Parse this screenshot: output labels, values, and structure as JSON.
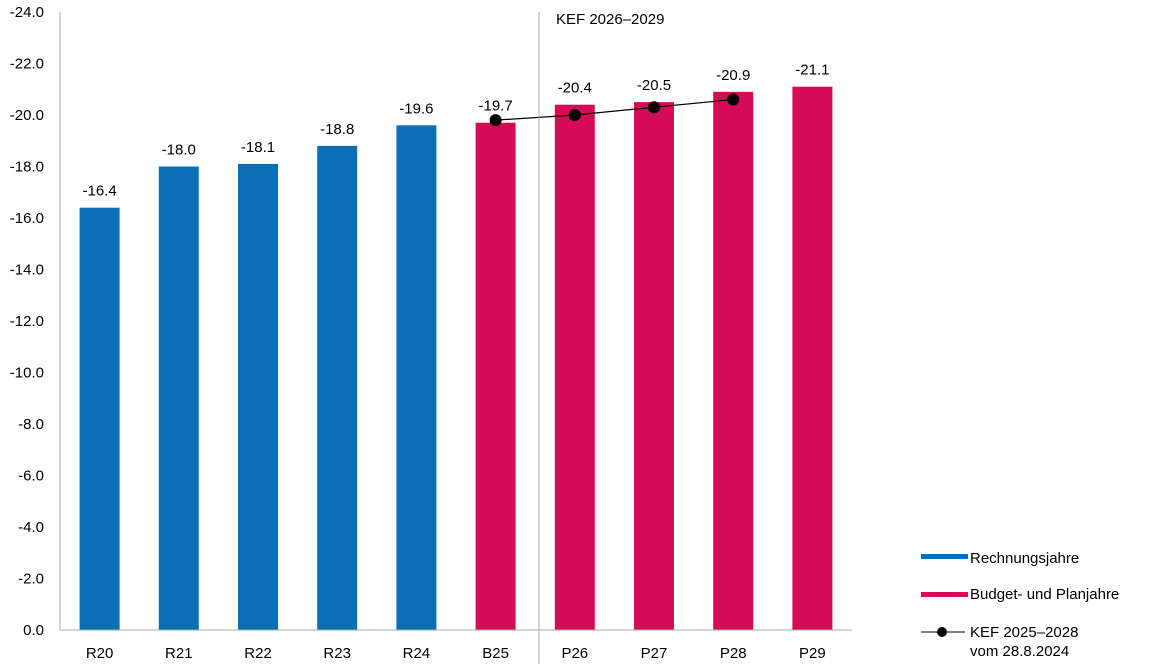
{
  "chart_data": {
    "type": "bar",
    "title": "",
    "xlabel": "",
    "ylabel": "",
    "ylim": [
      0,
      -24
    ],
    "y_axis_reversed": true,
    "yticks": [
      "0.0",
      "-2.0",
      "-4.0",
      "-6.0",
      "-8.0",
      "-10.0",
      "-12.0",
      "-14.0",
      "-16.0",
      "-18.0",
      "-20.0",
      "-22.0",
      "-24.0"
    ],
    "grid": false,
    "categories": [
      "R20",
      "R21",
      "R22",
      "R23",
      "R24",
      "B25",
      "P26",
      "P27",
      "P28",
      "P29"
    ],
    "series": [
      {
        "name": "Rechnungsjahre",
        "type": "bar",
        "color": "#0b6fb5",
        "values": [
          -16.4,
          -18.0,
          -18.1,
          -18.8,
          -19.6,
          null,
          null,
          null,
          null,
          null
        ]
      },
      {
        "name": "Budget- und Planjahre",
        "type": "bar",
        "color": "#d40b55",
        "values": [
          null,
          null,
          null,
          null,
          null,
          -19.7,
          -20.4,
          -20.5,
          -20.9,
          -21.1
        ]
      },
      {
        "name": "KEF 2025–2028 vom 28.8.2024",
        "name_lines": [
          "KEF 2025–2028",
          "vom 28.8.2024"
        ],
        "type": "line",
        "color": "#000000",
        "values": [
          null,
          null,
          null,
          null,
          null,
          -19.8,
          -20.0,
          -20.3,
          -20.6,
          null
        ]
      }
    ],
    "data_labels": [
      "-16.4",
      "-18.0",
      "-18.1",
      "-18.8",
      "-19.6",
      "-19.7",
      "-20.4",
      "-20.5",
      "-20.9",
      "-21.1"
    ],
    "annotation": "KEF 2026–2029",
    "divider_between": [
      "B25",
      "P26"
    ],
    "legend_placement": "bottom-right"
  }
}
